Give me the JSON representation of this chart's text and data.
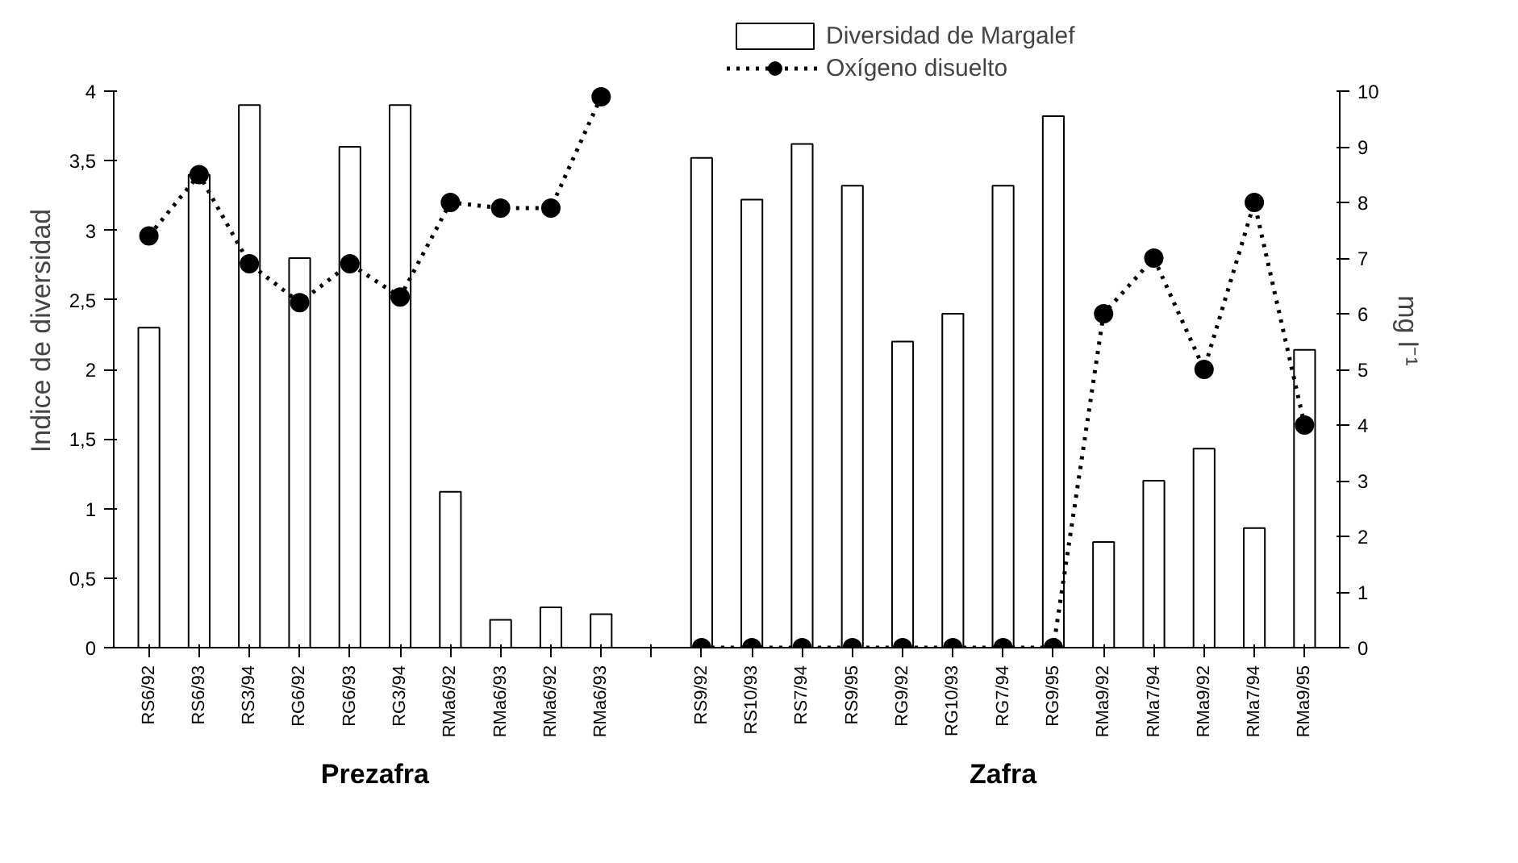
{
  "chart_data": {
    "type": "bar",
    "categories": [
      "RS6/92",
      "RS6/93",
      "RS3/94",
      "RG6/92",
      "RG6/93",
      "RG3/94",
      "RMa6/92",
      "RMa6/93",
      "RMa6/92",
      "RMa6/93",
      null,
      "RS9/92",
      "RS10/93",
      "RS7/94",
      "RS9/95",
      "RG9/92",
      "RG10/93",
      "RG7/94",
      "RG9/95",
      "RMa9/92",
      "RMa7/94",
      "RMa9/92",
      "RMa7/94",
      "RMa9/95"
    ],
    "series": [
      {
        "name": "Diversidad de Margalef",
        "color": "#ffffff",
        "values": [
          2.3,
          3.4,
          3.9,
          2.8,
          3.6,
          3.9,
          1.12,
          0.2,
          0.29,
          0.24,
          null,
          3.52,
          3.22,
          3.62,
          3.32,
          2.2,
          2.4,
          3.32,
          3.82,
          0.76,
          1.2,
          1.43,
          0.86,
          2.14
        ]
      },
      {
        "name": "Oxígeno disuelto",
        "type": "line",
        "axis": "y2",
        "color": "#000000",
        "marker": "circle",
        "line_style": "dotted",
        "values": [
          7.4,
          8.5,
          6.9,
          6.2,
          6.9,
          6.3,
          8.0,
          7.9,
          7.9,
          9.9,
          null,
          0,
          0,
          0,
          0,
          0,
          0,
          0,
          0,
          6,
          7,
          5,
          8,
          4
        ]
      }
    ],
    "ylabel": "Indice de diversidad",
    "y2label": "mg l⁻¹",
    "ylim": [
      0,
      4
    ],
    "yticks": [
      0,
      {
        "value": 0.5,
        "label": "0,5"
      },
      1,
      {
        "value": 1.5,
        "label": "1,5"
      },
      2,
      {
        "value": 2.5,
        "label": "2,5"
      },
      3,
      {
        "value": 3.5,
        "label": "3,5"
      },
      4
    ],
    "y2lim": [
      0,
      10
    ],
    "y2ticks": [
      0,
      1,
      2,
      3,
      4,
      5,
      6,
      7,
      8,
      9,
      10
    ],
    "annotations": [
      "Prezafra",
      "Zafra"
    ],
    "legend": "top",
    "grid": false
  }
}
